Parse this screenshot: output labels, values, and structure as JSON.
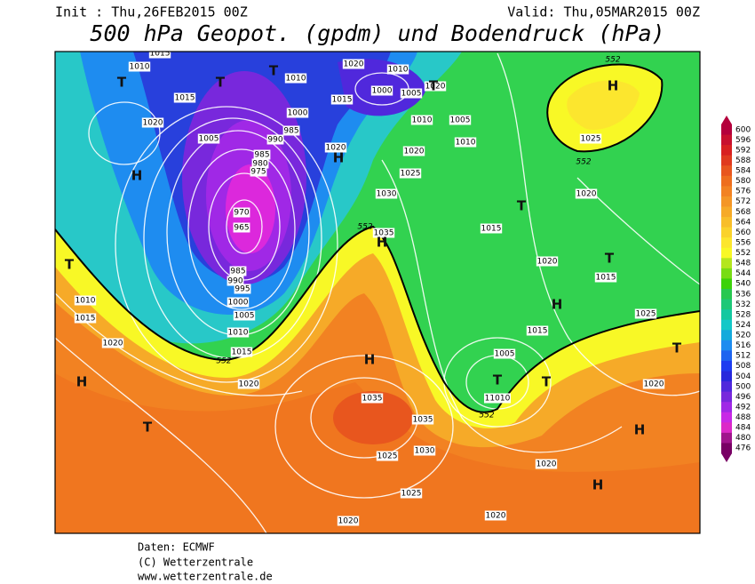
{
  "header": {
    "init": "Init : Thu,26FEB2015 00Z",
    "valid": "Valid: Thu,05MAR2015 00Z",
    "title": "500 hPa Geopot. (gpdm) und Bodendruck (hPa)"
  },
  "map": {
    "isobar_labels": [
      "1015",
      "1010",
      "1015",
      "1020",
      "1005",
      "1010",
      "1000",
      "985",
      "990",
      "985",
      "980",
      "975",
      "970",
      "965",
      "985",
      "990",
      "995",
      "1000",
      "1005",
      "1010",
      "1015",
      "1020",
      "1020",
      "1010",
      "1000",
      "1005",
      "1020",
      "1015",
      "1010",
      "1005",
      "1010",
      "1020",
      "1020",
      "1025",
      "1030",
      "1035",
      "1015",
      "1020",
      "1025",
      "1020",
      "1015",
      "1025",
      "1015",
      "1005",
      "11010",
      "1020",
      "1020",
      "1020",
      "1020",
      "1025",
      "1025",
      "1030",
      "1035",
      "1035",
      "1010",
      "1015",
      "1020"
    ],
    "contour_552_labels": [
      "552",
      "552",
      "552",
      "552",
      "552"
    ],
    "pressure_centers": [
      "T",
      "T",
      "T",
      "H",
      "H",
      "H",
      "T",
      "H",
      "T",
      "T",
      "H",
      "T",
      "H",
      "T",
      "H",
      "T",
      "T",
      "T",
      "H",
      "H"
    ]
  },
  "colorbar": {
    "levels": [
      600,
      596,
      592,
      588,
      584,
      580,
      576,
      572,
      568,
      564,
      560,
      556,
      552,
      548,
      544,
      540,
      536,
      532,
      528,
      524,
      520,
      516,
      512,
      508,
      504,
      500,
      496,
      492,
      488,
      484,
      480,
      476
    ],
    "colors": [
      "#b4003c",
      "#c8102e",
      "#d82020",
      "#e03a1e",
      "#e8561e",
      "#ee6e1e",
      "#f28222",
      "#f49626",
      "#f6aa28",
      "#f8be2a",
      "#fad22c",
      "#fce62e",
      "#f8f826",
      "#b4e61e",
      "#78dc14",
      "#3cd20a",
      "#28c850",
      "#1ec878",
      "#14c8a0",
      "#14c8c8",
      "#14aadc",
      "#1e8cf0",
      "#1e64f0",
      "#1e3cf0",
      "#2828dc",
      "#5028dc",
      "#7828dc",
      "#a028e6",
      "#c828e6",
      "#dc28c8",
      "#a0148c",
      "#780064"
    ]
  },
  "footer": {
    "lines": [
      "Daten: ECMWF",
      "(C) Wetterzentrale",
      "www.wetterzentrale.de"
    ]
  }
}
